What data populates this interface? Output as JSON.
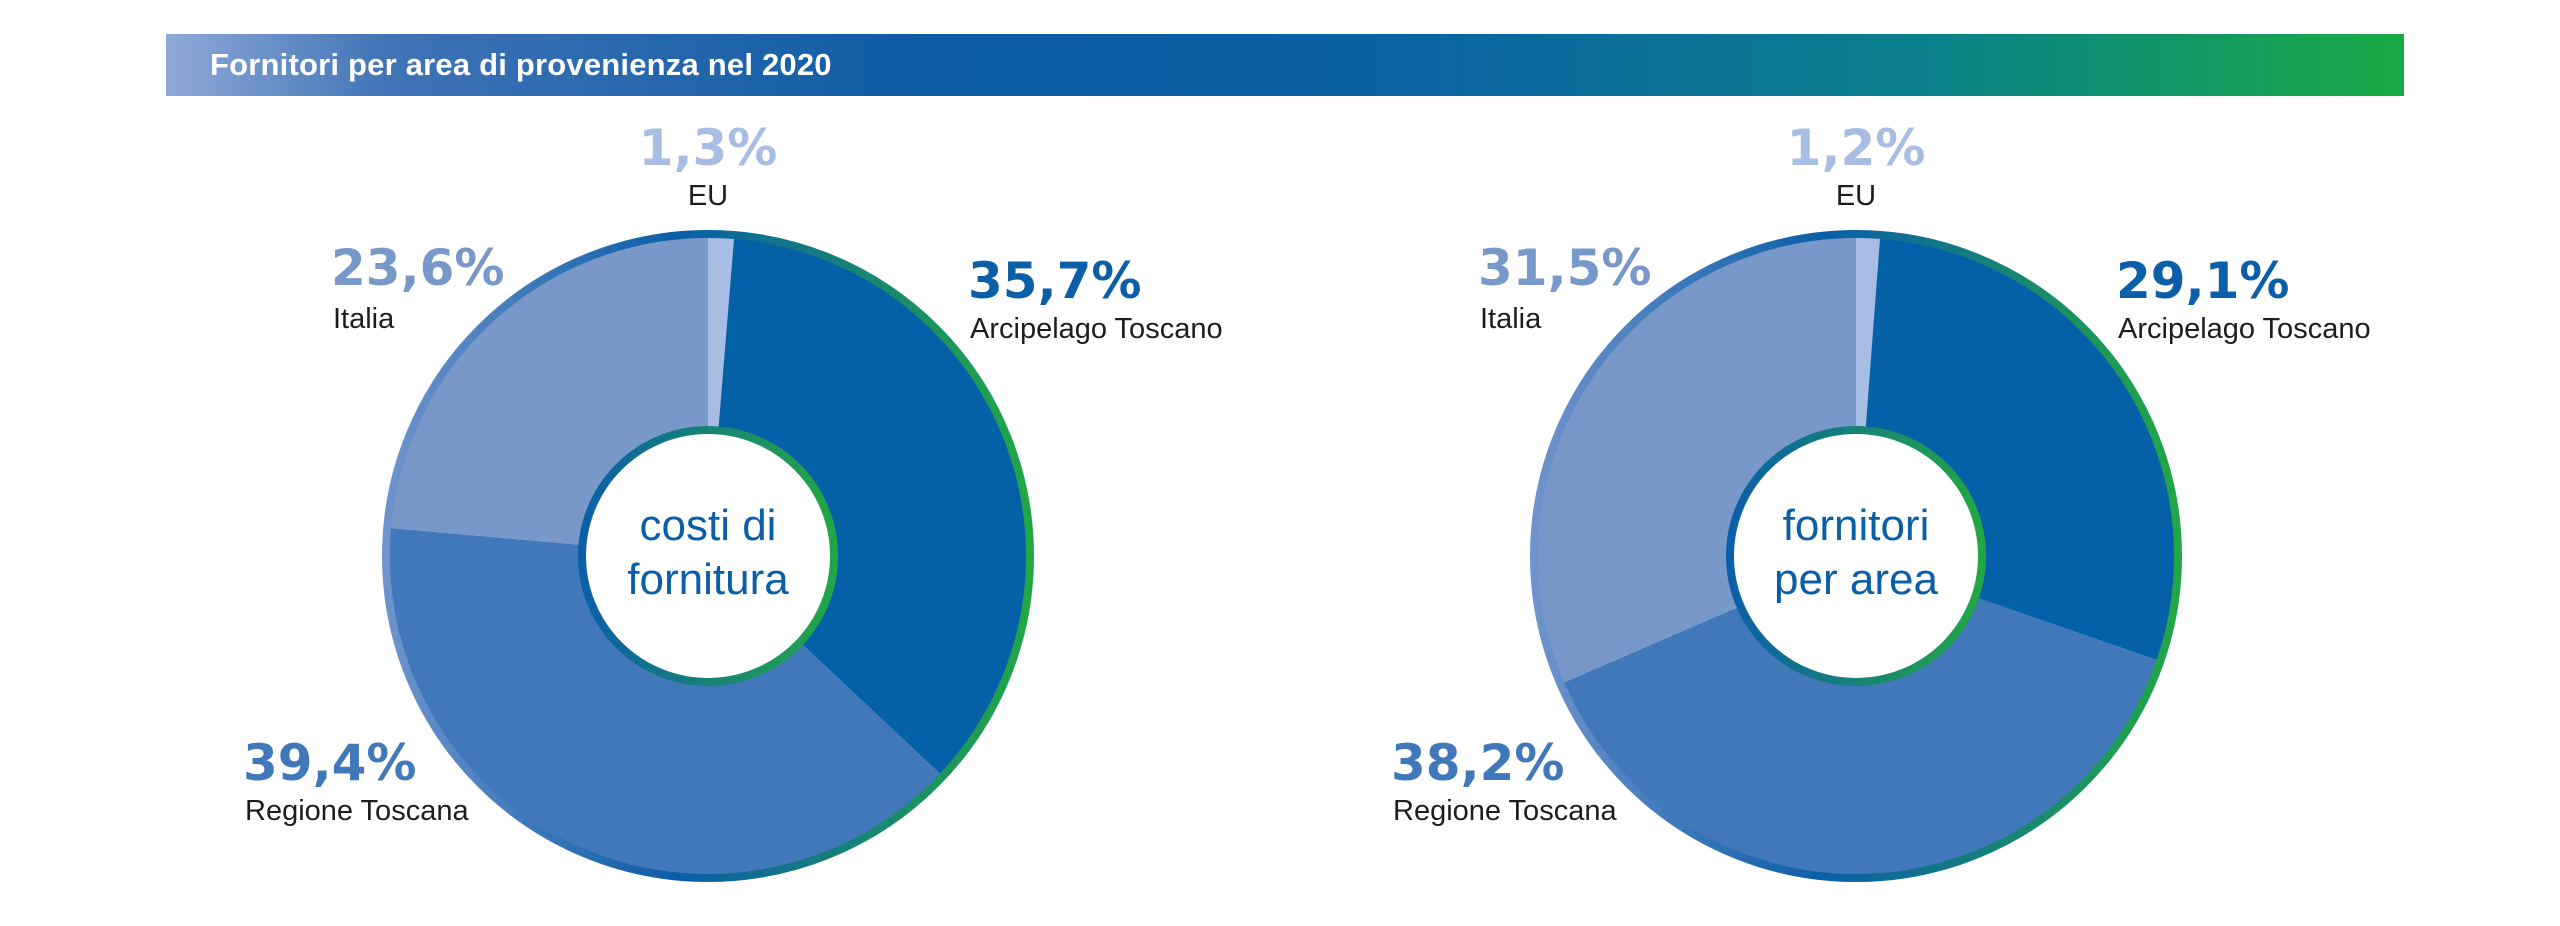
{
  "header": {
    "title": "Fornitori per area di provenienza nel 2020"
  },
  "chart_data": [
    {
      "type": "pie",
      "title": "costi di fornitura",
      "title_line1": "costi di",
      "title_line2": "fornitura",
      "slices": [
        {
          "label": "EU",
          "value": 1.3,
          "value_label": "1,3%",
          "color": "#a7bde3"
        },
        {
          "label": "Arcipelago Toscano",
          "value": 35.7,
          "value_label": "35,7%",
          "color": "#0461a8"
        },
        {
          "label": "Regione Toscana",
          "value": 39.4,
          "value_label": "39,4%",
          "color": "#4178b9"
        },
        {
          "label": "Italia",
          "value": 23.6,
          "value_label": "23,6%",
          "color": "#7898c9"
        }
      ]
    },
    {
      "type": "pie",
      "title": "fornitori per area",
      "title_line1": "fornitori",
      "title_line2": "per area",
      "slices": [
        {
          "label": "EU",
          "value": 1.2,
          "value_label": "1,2%",
          "color": "#a7bde3"
        },
        {
          "label": "Arcipelago Toscano",
          "value": 29.1,
          "value_label": "29,1%",
          "color": "#0461a8"
        },
        {
          "label": "Regione Toscana",
          "value": 38.2,
          "value_label": "38,2%",
          "color": "#4178b9"
        },
        {
          "label": "Italia",
          "value": 31.5,
          "value_label": "31,5%",
          "color": "#7898c9"
        }
      ]
    }
  ]
}
